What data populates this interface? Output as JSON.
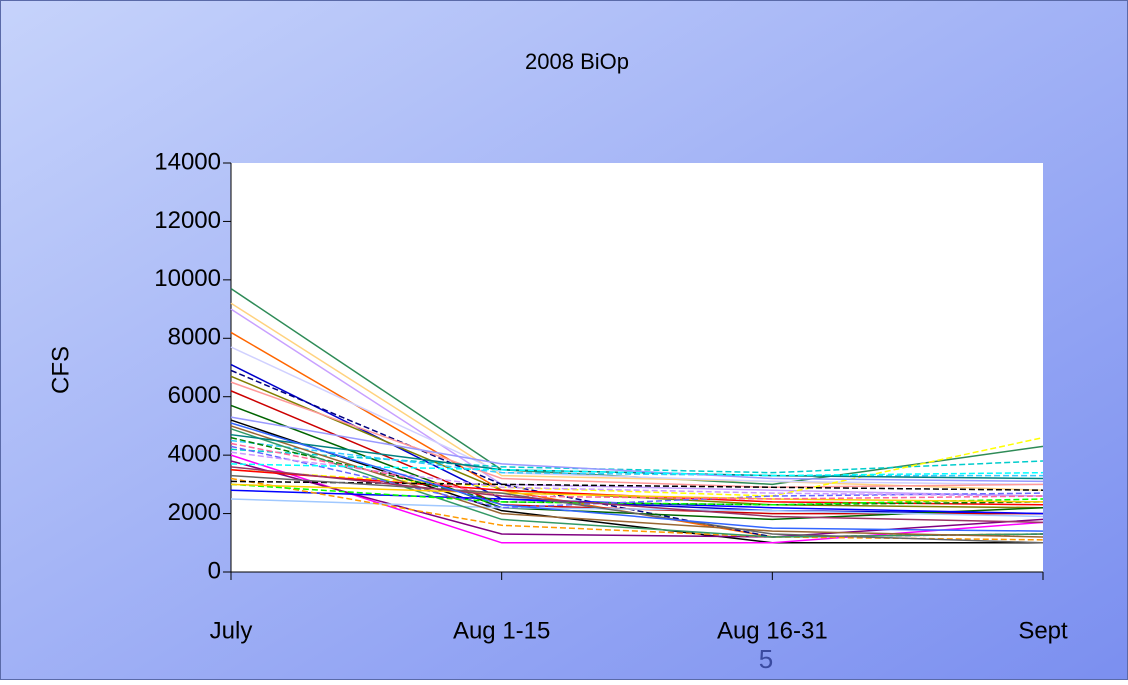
{
  "chart_data": {
    "type": "line",
    "title": "2008 BiOp",
    "y_label": "CFS",
    "categories": [
      "July",
      "Aug 1-15",
      "Aug 16-31",
      "Sept"
    ],
    "ylim": [
      0,
      14000
    ],
    "yticks": [
      0,
      2000,
      4000,
      6000,
      8000,
      10000,
      12000,
      14000
    ],
    "series": [
      {
        "color": "#2e8b57",
        "values": [
          9700,
          3500,
          3000,
          4300
        ]
      },
      {
        "color": "#ffd27f",
        "values": [
          9200,
          3300,
          3100,
          2800
        ]
      },
      {
        "color": "#c8a0ff",
        "values": [
          9000,
          3000,
          2800,
          2600
        ]
      },
      {
        "color": "#ff6600",
        "values": [
          8200,
          2800,
          1200,
          1300
        ]
      },
      {
        "color": "#d0d0ff",
        "values": [
          7700,
          3400,
          3100,
          3000
        ]
      },
      {
        "color": "#0000cc",
        "values": [
          7100,
          2500,
          2100,
          2000
        ]
      },
      {
        "color": "#000080",
        "dashed": true,
        "values": [
          6900,
          3000,
          1200,
          1300
        ]
      },
      {
        "color": "#808000",
        "values": [
          6700,
          2800,
          2300,
          2200
        ]
      },
      {
        "color": "#ff9999",
        "values": [
          6500,
          3200,
          2900,
          3000
        ]
      },
      {
        "color": "#cc0000",
        "values": [
          6200,
          2300,
          2000,
          2000
        ]
      },
      {
        "color": "#000000",
        "values": [
          5200,
          2100,
          1000,
          1000
        ]
      },
      {
        "color": "#006400",
        "values": [
          5700,
          2200,
          1800,
          2200
        ]
      },
      {
        "color": "#00cccc",
        "dashed": true,
        "values": [
          4200,
          3600,
          3400,
          3800
        ]
      },
      {
        "color": "#33ccff",
        "dashed": true,
        "values": [
          4500,
          3400,
          3300,
          3300
        ]
      },
      {
        "color": "#ff00ff",
        "values": [
          4000,
          1000,
          1000,
          1700
        ]
      },
      {
        "color": "#800080",
        "values": [
          3800,
          1300,
          1200,
          1800
        ]
      },
      {
        "color": "#ffff00",
        "dashed": true,
        "values": [
          3500,
          2900,
          2600,
          4600
        ]
      },
      {
        "color": "#0000ff",
        "values": [
          2800,
          2500,
          2200,
          2000
        ]
      },
      {
        "color": "#a0c8ff",
        "values": [
          2500,
          2200,
          2100,
          1900
        ]
      },
      {
        "color": "#ff0000",
        "values": [
          3500,
          2800,
          2400,
          2300
        ]
      },
      {
        "color": "#008000",
        "dashed": true,
        "values": [
          4600,
          2400,
          2300,
          2400
        ]
      },
      {
        "color": "#ff9900",
        "dashed": true,
        "values": [
          3200,
          1600,
          1200,
          1100
        ]
      },
      {
        "color": "#000000",
        "dashed": true,
        "values": [
          3100,
          3000,
          2900,
          2800
        ]
      },
      {
        "color": "#339966",
        "values": [
          4900,
          1800,
          1200,
          1300
        ]
      },
      {
        "color": "#996633",
        "values": [
          5000,
          2000,
          1400,
          1200
        ]
      },
      {
        "color": "#00ff00",
        "dashed": true,
        "values": [
          3000,
          2400,
          2300,
          2500
        ]
      },
      {
        "color": "#6666ff",
        "dashed": true,
        "values": [
          4300,
          2200,
          2600,
          2700
        ]
      },
      {
        "color": "#ffcc00",
        "values": [
          3000,
          2700,
          2500,
          2400
        ]
      },
      {
        "color": "#cc99ff",
        "dashed": true,
        "values": [
          4100,
          2900,
          2700,
          2600
        ]
      },
      {
        "color": "#008080",
        "values": [
          4700,
          3500,
          3300,
          3200
        ]
      },
      {
        "color": "#ff6699",
        "dashed": true,
        "values": [
          4400,
          2600,
          2500,
          2600
        ]
      },
      {
        "color": "#666666",
        "values": [
          3300,
          2700,
          1300,
          1000
        ]
      },
      {
        "color": "#9999ff",
        "values": [
          5300,
          3700,
          3200,
          3100
        ]
      },
      {
        "color": "#00ffff",
        "dashed": true,
        "values": [
          3700,
          3500,
          3300,
          3400
        ]
      },
      {
        "color": "#993366",
        "values": [
          3600,
          2600,
          1900,
          1700
        ]
      },
      {
        "color": "#3366ff",
        "values": [
          5100,
          2300,
          1500,
          1400
        ]
      }
    ]
  },
  "slide_number": 5
}
